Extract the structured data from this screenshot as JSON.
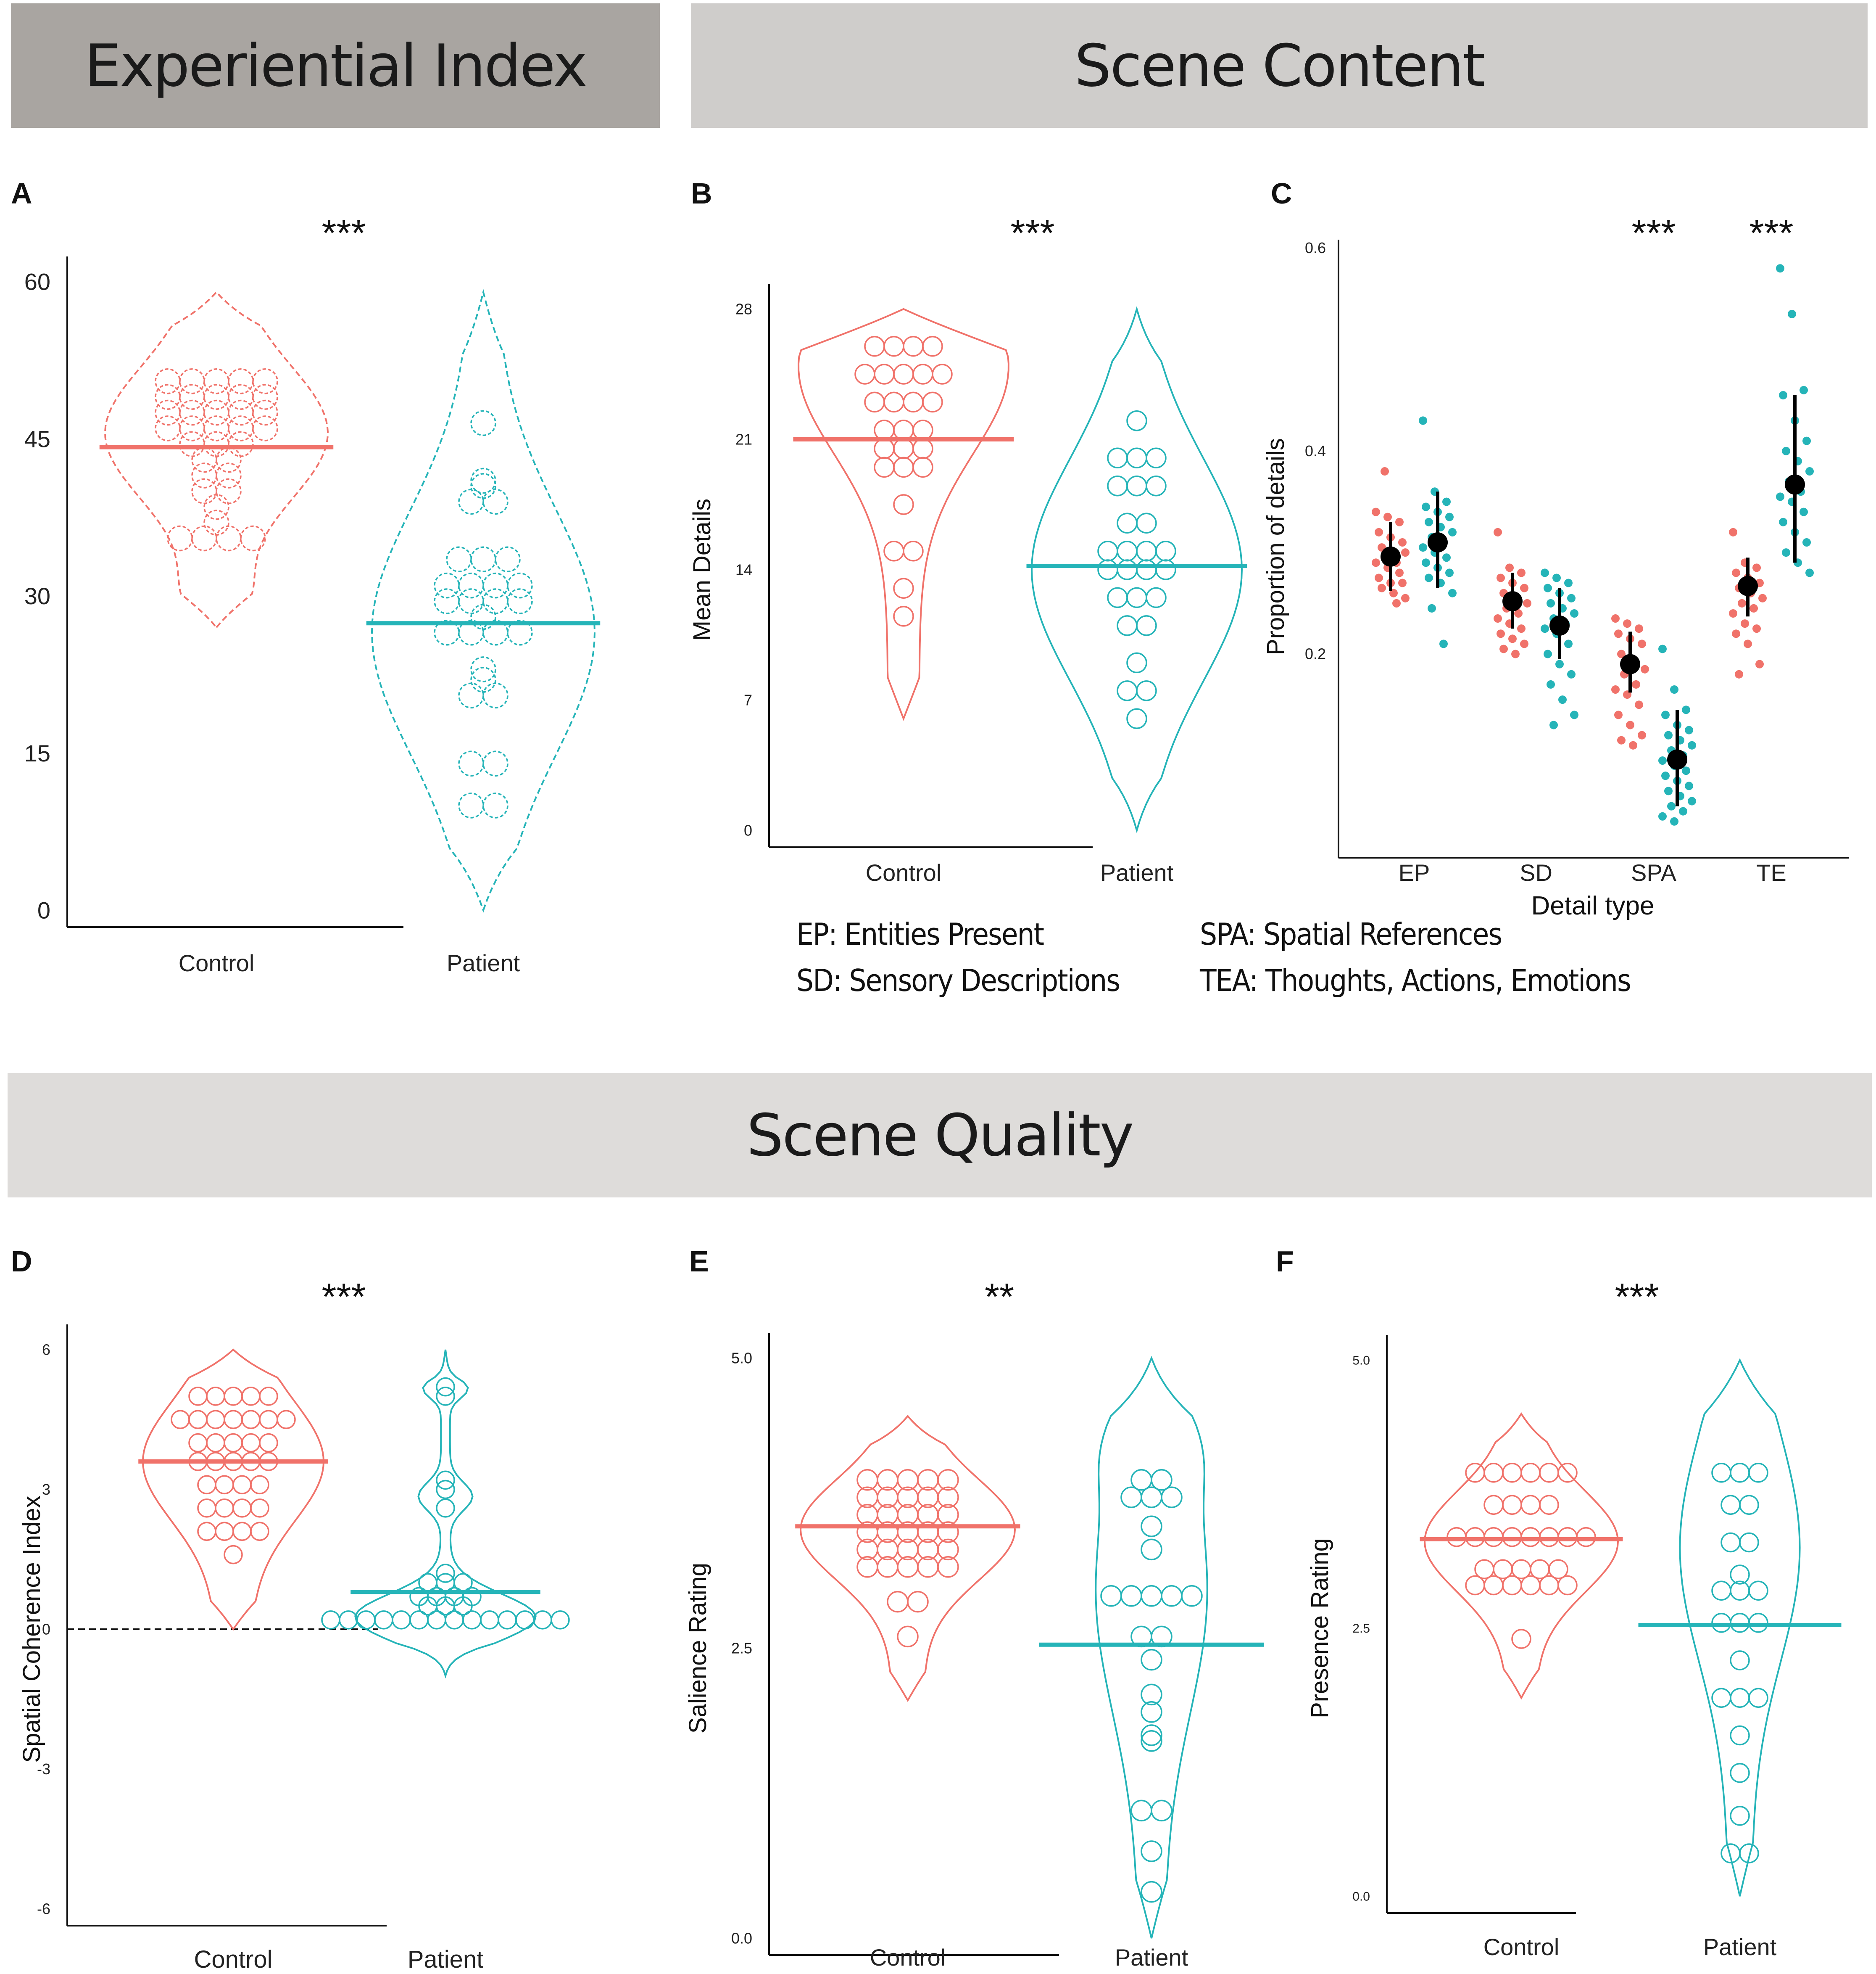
{
  "banners": {
    "experiential": "Experiential Index",
    "content": "Scene Content",
    "quality": "Scene Quality"
  },
  "legend": {
    "ep": "EP: Entities Present",
    "sd": "SD: Sensory Descriptions",
    "spa": "SPA: Spatial References",
    "tea": "TEA: Thoughts, Actions, Emotions"
  },
  "colors": {
    "control": "#f0726a",
    "patient": "#25b4b8",
    "axis": "#111111",
    "summary": "#000000"
  },
  "chart_data": [
    {
      "id": "A",
      "type": "violin",
      "letter": "A",
      "significance": "***",
      "ylabel": "",
      "xlabel": "",
      "categories": [
        "Control",
        "Patient"
      ],
      "ylim": [
        0,
        60
      ],
      "yticks": [
        0,
        15,
        30,
        45,
        60
      ],
      "ytick_labels": [
        "0",
        "15",
        "30",
        "45",
        "60"
      ],
      "violin_range": [
        [
          27,
          59
        ],
        [
          0,
          59
        ]
      ],
      "means": [
        44.2,
        27.4
      ],
      "violin_style": "dashed",
      "points": [
        [
          50.5,
          50.5,
          50.5,
          50.5,
          50.5,
          49,
          49,
          49,
          49,
          49,
          47.5,
          47.5,
          47.5,
          47.5,
          47.5,
          46,
          46,
          46,
          46,
          46,
          44.5,
          44.5,
          44.5,
          43,
          43,
          41.5,
          41.5,
          40,
          40,
          38.5,
          37,
          35.5,
          35.5,
          35.5,
          35.5
        ],
        [
          46.5,
          41,
          40.5,
          39,
          39,
          33.5,
          33.5,
          33.5,
          31,
          31,
          31,
          31,
          29.5,
          29.5,
          29.5,
          29.5,
          28,
          26.5,
          26.5,
          26.5,
          26.5,
          23,
          22,
          20.5,
          20.5,
          14,
          14,
          10,
          10
        ]
      ]
    },
    {
      "id": "B",
      "type": "violin",
      "letter": "B",
      "significance": "***",
      "ylabel": "Mean Details",
      "xlabel": "",
      "categories": [
        "Control",
        "Patient"
      ],
      "ylim": [
        0,
        28
      ],
      "yticks": [
        0,
        7,
        14,
        21,
        28
      ],
      "ytick_labels": [
        "0",
        "7",
        "14",
        "21",
        "28"
      ],
      "violin_range": [
        [
          6,
          28
        ],
        [
          0,
          28
        ]
      ],
      "means": [
        21.0,
        14.2
      ],
      "violin_style": "solid",
      "points": [
        [
          26,
          26,
          26,
          26,
          24.5,
          24.5,
          24.5,
          24.5,
          24.5,
          23,
          23,
          23,
          23,
          21.5,
          21.5,
          21.5,
          20.5,
          20.5,
          20.5,
          19.5,
          19.5,
          19.5,
          17.5,
          15,
          15,
          13,
          11.5
        ],
        [
          22,
          20,
          20,
          20,
          18.5,
          18.5,
          18.5,
          16.5,
          16.5,
          15,
          15,
          15,
          15,
          14,
          14,
          14,
          14,
          12.5,
          12.5,
          12.5,
          11,
          11,
          9,
          7.5,
          7.5,
          6
        ]
      ]
    },
    {
      "id": "C",
      "type": "strip",
      "letter": "C",
      "ylabel": "Proportion of details",
      "xlabel": "Detail type",
      "categories": [
        "EP",
        "SD",
        "SPA",
        "TE"
      ],
      "significance": [
        "",
        "",
        "***",
        "***"
      ],
      "ylim": [
        0.02,
        0.6
      ],
      "yticks": [
        0.2,
        0.4,
        0.6
      ],
      "ytick_labels": [
        "0.2",
        "0.4",
        "0.6"
      ],
      "series": [
        {
          "name": "Control",
          "means": [
            0.296,
            0.252,
            0.19,
            0.267
          ],
          "ci": [
            [
              0.262,
              0.33
            ],
            [
              0.225,
              0.28
            ],
            [
              0.162,
              0.222
            ],
            [
              0.237,
              0.295
            ]
          ],
          "points": [
            [
              0.34,
              0.335,
              0.33,
              0.32,
              0.315,
              0.31,
              0.305,
              0.3,
              0.3,
              0.295,
              0.29,
              0.29,
              0.285,
              0.28,
              0.275,
              0.27,
              0.27,
              0.265,
              0.26,
              0.255,
              0.38,
              0.25
            ],
            [
              0.32,
              0.285,
              0.28,
              0.275,
              0.27,
              0.265,
              0.26,
              0.255,
              0.25,
              0.245,
              0.24,
              0.235,
              0.23,
              0.225,
              0.22,
              0.215,
              0.21,
              0.205,
              0.2
            ],
            [
              0.235,
              0.23,
              0.225,
              0.22,
              0.215,
              0.21,
              0.2,
              0.19,
              0.185,
              0.18,
              0.17,
              0.165,
              0.16,
              0.15,
              0.14,
              0.13,
              0.12,
              0.115,
              0.11
            ],
            [
              0.32,
              0.29,
              0.285,
              0.28,
              0.275,
              0.27,
              0.265,
              0.26,
              0.255,
              0.25,
              0.245,
              0.24,
              0.23,
              0.225,
              0.22,
              0.21,
              0.19,
              0.18
            ]
          ]
        },
        {
          "name": "Patient",
          "means": [
            0.31,
            0.228,
            0.096,
            0.367
          ],
          "ci": [
            [
              0.265,
              0.36
            ],
            [
              0.195,
              0.265
            ],
            [
              0.05,
              0.145
            ],
            [
              0.29,
              0.455
            ]
          ],
          "points": [
            [
              0.43,
              0.36,
              0.35,
              0.345,
              0.34,
              0.335,
              0.33,
              0.325,
              0.32,
              0.315,
              0.31,
              0.305,
              0.3,
              0.295,
              0.29,
              0.285,
              0.28,
              0.275,
              0.27,
              0.26,
              0.245,
              0.21
            ],
            [
              0.28,
              0.275,
              0.27,
              0.265,
              0.26,
              0.255,
              0.25,
              0.245,
              0.24,
              0.235,
              0.23,
              0.225,
              0.22,
              0.21,
              0.2,
              0.19,
              0.18,
              0.17,
              0.155,
              0.14,
              0.13
            ],
            [
              0.205,
              0.165,
              0.145,
              0.14,
              0.13,
              0.125,
              0.12,
              0.115,
              0.11,
              0.105,
              0.1,
              0.095,
              0.09,
              0.085,
              0.08,
              0.075,
              0.07,
              0.065,
              0.06,
              0.055,
              0.05,
              0.045,
              0.04,
              0.035
            ],
            [
              0.58,
              0.535,
              0.46,
              0.455,
              0.43,
              0.41,
              0.4,
              0.39,
              0.38,
              0.37,
              0.36,
              0.355,
              0.35,
              0.34,
              0.33,
              0.32,
              0.31,
              0.3,
              0.29,
              0.28
            ]
          ]
        }
      ]
    },
    {
      "id": "D",
      "type": "violin",
      "letter": "D",
      "significance": "***",
      "ylabel": "Spatial Coherence Index",
      "xlabel": "",
      "categories": [
        "Control",
        "Patient"
      ],
      "ylim": [
        -6,
        6
      ],
      "yticks": [
        -6,
        -3,
        0,
        3,
        6
      ],
      "ytick_labels": [
        "-6",
        "-3",
        "0",
        "3",
        "6"
      ],
      "violin_range": [
        [
          0,
          6
        ],
        [
          -1,
          6
        ]
      ],
      "means": [
        3.6,
        0.8
      ],
      "violin_style": "solid",
      "reference_line": 0,
      "points": [
        [
          5.0,
          5.0,
          5.0,
          5.0,
          5.0,
          4.5,
          4.5,
          4.5,
          4.5,
          4.5,
          4.5,
          4.5,
          4.0,
          4.0,
          4.0,
          4.0,
          4.0,
          3.6,
          3.6,
          3.6,
          3.6,
          3.6,
          3.1,
          3.1,
          3.1,
          3.1,
          2.6,
          2.6,
          2.6,
          2.6,
          2.1,
          2.1,
          2.1,
          2.1,
          1.6
        ],
        [
          5.2,
          5.0,
          3.2,
          3.0,
          2.6,
          1.2,
          1.0,
          1.0,
          1.0,
          0.7,
          0.7,
          0.7,
          0.7,
          0.5,
          0.5,
          0.5,
          0.2,
          0.2,
          0.2,
          0.2,
          0.2,
          0.2,
          0.2,
          0.2,
          0.2,
          0.2,
          0.2,
          0.2,
          0.2,
          0.2
        ]
      ]
    },
    {
      "id": "E",
      "type": "violin",
      "letter": "E",
      "significance": "**",
      "ylabel": "Salience Rating",
      "xlabel": "",
      "categories": [
        "Control",
        "Patient"
      ],
      "ylim": [
        0,
        5
      ],
      "yticks": [
        0,
        2.5,
        5
      ],
      "ytick_labels": [
        "0.0",
        "2.5",
        "5.0"
      ],
      "violin_range": [
        [
          2.05,
          4.5
        ],
        [
          0,
          5
        ]
      ],
      "means": [
        3.55,
        2.53
      ],
      "violin_style": "solid",
      "points": [
        [
          3.95,
          3.95,
          3.95,
          3.95,
          3.95,
          3.8,
          3.8,
          3.8,
          3.8,
          3.8,
          3.65,
          3.65,
          3.65,
          3.65,
          3.65,
          3.5,
          3.5,
          3.5,
          3.5,
          3.5,
          3.35,
          3.35,
          3.35,
          3.35,
          3.35,
          3.2,
          3.2,
          3.2,
          3.2,
          3.2,
          2.9,
          2.9,
          2.6
        ],
        [
          3.95,
          3.95,
          3.8,
          3.8,
          3.8,
          3.55,
          3.35,
          2.95,
          2.95,
          2.95,
          2.95,
          2.95,
          2.6,
          2.6,
          2.4,
          2.1,
          1.95,
          1.75,
          1.7,
          1.1,
          1.1,
          0.75,
          0.4
        ]
      ]
    },
    {
      "id": "F",
      "type": "violin",
      "letter": "F",
      "significance": "***",
      "ylabel": "Presence Rating",
      "xlabel": "",
      "categories": [
        "Control",
        "Patient"
      ],
      "ylim": [
        0,
        5
      ],
      "yticks": [
        0,
        2.5,
        5
      ],
      "ytick_labels": [
        "0.0",
        "2.5",
        "5.0"
      ],
      "violin_range": [
        [
          1.85,
          4.5
        ],
        [
          0,
          5
        ]
      ],
      "means": [
        3.33,
        2.53
      ],
      "violin_style": "solid",
      "points": [
        [
          3.95,
          3.95,
          3.95,
          3.95,
          3.95,
          3.95,
          3.65,
          3.65,
          3.65,
          3.65,
          3.35,
          3.35,
          3.35,
          3.35,
          3.35,
          3.35,
          3.35,
          3.35,
          3.05,
          3.05,
          3.05,
          3.05,
          3.05,
          2.9,
          2.9,
          2.9,
          2.9,
          2.9,
          2.9,
          2.4
        ],
        [
          3.95,
          3.95,
          3.95,
          3.65,
          3.65,
          3.3,
          3.3,
          3.0,
          2.85,
          2.85,
          2.85,
          2.55,
          2.55,
          2.55,
          2.2,
          1.85,
          1.85,
          1.85,
          1.5,
          1.15,
          0.75,
          0.4,
          0.4
        ]
      ]
    }
  ]
}
